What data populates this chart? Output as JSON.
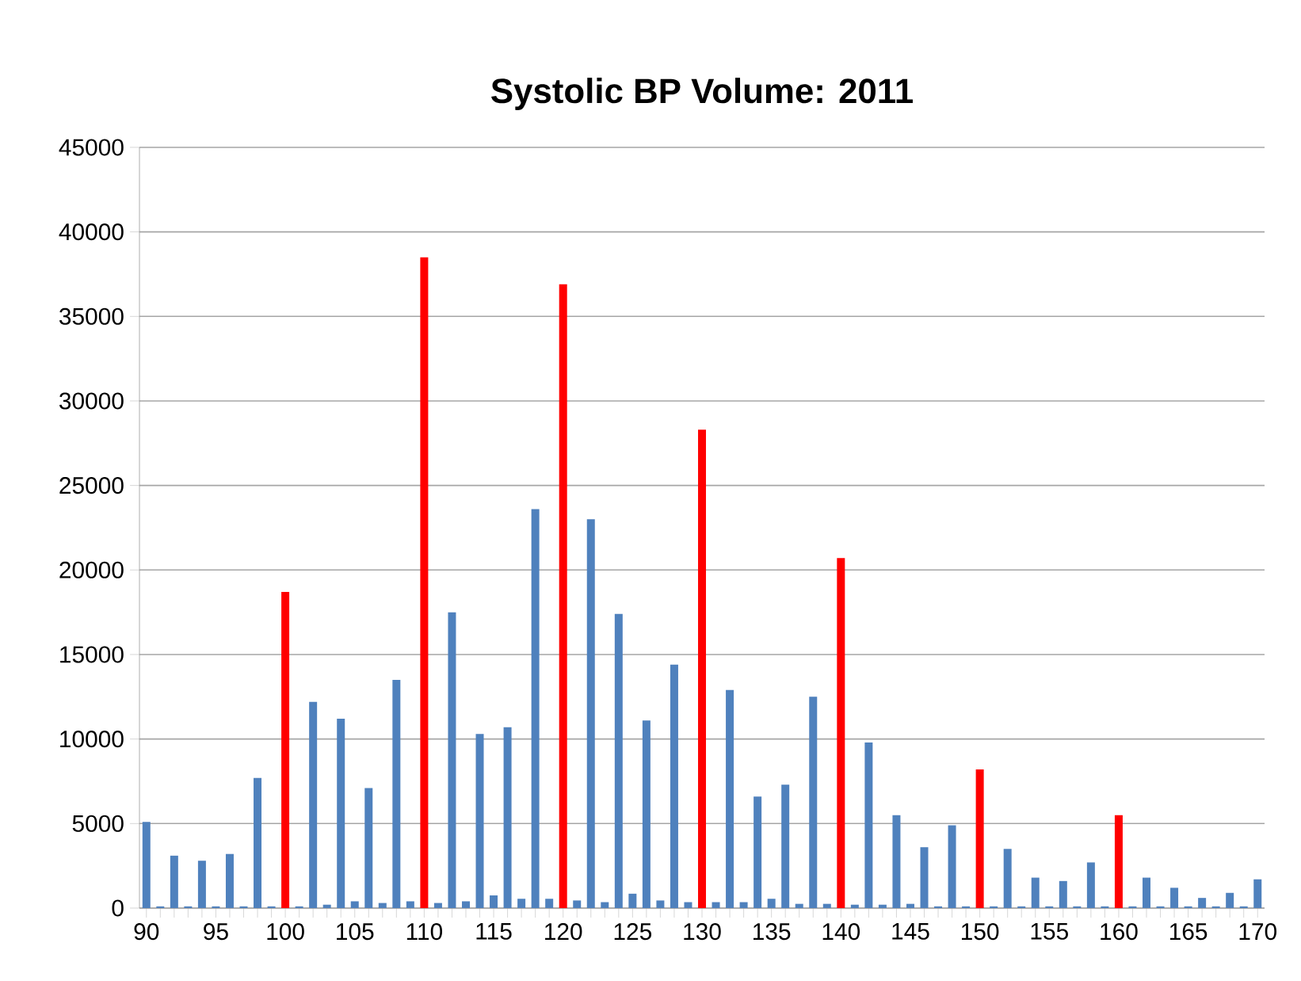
{
  "chart_data": {
    "type": "bar",
    "title": "Systolic BP Volume: 2011",
    "categories": [
      "90",
      null,
      null,
      null,
      null,
      "95",
      null,
      null,
      null,
      null,
      "100",
      null,
      null,
      null,
      null,
      "105",
      null,
      null,
      null,
      null,
      "110",
      null,
      null,
      null,
      null,
      "115",
      null,
      null,
      null,
      null,
      "120",
      null,
      null,
      null,
      null,
      "125",
      null,
      null,
      null,
      null,
      "130",
      null,
      null,
      null,
      null,
      "135",
      null,
      null,
      null,
      null,
      "140",
      null,
      null,
      null,
      null,
      "145",
      null,
      null,
      null,
      null,
      "150",
      null,
      null,
      null,
      null,
      "155",
      null,
      null,
      null,
      null,
      "160",
      null,
      null,
      null,
      null,
      "165",
      null,
      null,
      null,
      null,
      "170"
    ],
    "values": [
      5100,
      100,
      3100,
      100,
      2800,
      100,
      3200,
      100,
      7700,
      100,
      18700,
      100,
      12200,
      200,
      11200,
      400,
      7100,
      300,
      13500,
      400,
      38500,
      300,
      17500,
      400,
      10300,
      750,
      10700,
      550,
      23600,
      550,
      36900,
      450,
      23000,
      350,
      17400,
      850,
      11100,
      450,
      14400,
      350,
      28300,
      350,
      12900,
      350,
      6600,
      550,
      7300,
      250,
      12500,
      250,
      20700,
      200,
      9800,
      200,
      5500,
      250,
      3600,
      100,
      4900,
      100,
      8200,
      100,
      3500,
      100,
      1800,
      100,
      1600,
      100,
      2700,
      100,
      5500,
      100,
      1800,
      100,
      1200,
      100,
      600,
      100,
      900,
      100,
      1700
    ],
    "colors": [
      "#4f81bd",
      "#4f81bd",
      "#4f81bd",
      "#4f81bd",
      "#4f81bd",
      "#4f81bd",
      "#4f81bd",
      "#4f81bd",
      "#4f81bd",
      "#4f81bd",
      "#ff0000",
      "#4f81bd",
      "#4f81bd",
      "#4f81bd",
      "#4f81bd",
      "#4f81bd",
      "#4f81bd",
      "#4f81bd",
      "#4f81bd",
      "#4f81bd",
      "#ff0000",
      "#4f81bd",
      "#4f81bd",
      "#4f81bd",
      "#4f81bd",
      "#4f81bd",
      "#4f81bd",
      "#4f81bd",
      "#4f81bd",
      "#4f81bd",
      "#ff0000",
      "#4f81bd",
      "#4f81bd",
      "#4f81bd",
      "#4f81bd",
      "#4f81bd",
      "#4f81bd",
      "#4f81bd",
      "#4f81bd",
      "#4f81bd",
      "#ff0000",
      "#4f81bd",
      "#4f81bd",
      "#4f81bd",
      "#4f81bd",
      "#4f81bd",
      "#4f81bd",
      "#4f81bd",
      "#4f81bd",
      "#4f81bd",
      "#ff0000",
      "#4f81bd",
      "#4f81bd",
      "#4f81bd",
      "#4f81bd",
      "#4f81bd",
      "#4f81bd",
      "#4f81bd",
      "#4f81bd",
      "#4f81bd",
      "#ff0000",
      "#4f81bd",
      "#4f81bd",
      "#4f81bd",
      "#4f81bd",
      "#4f81bd",
      "#4f81bd",
      "#4f81bd",
      "#4f81bd",
      "#4f81bd",
      "#ff0000",
      "#4f81bd",
      "#4f81bd",
      "#4f81bd",
      "#4f81bd",
      "#4f81bd",
      "#4f81bd",
      "#4f81bd",
      "#4f81bd",
      "#4f81bd",
      "#4f81bd"
    ],
    "ylim": [
      0,
      45000
    ],
    "yticks": [
      0,
      5000,
      10000,
      15000,
      20000,
      25000,
      30000,
      35000,
      40000,
      45000
    ],
    "grid": "y"
  }
}
